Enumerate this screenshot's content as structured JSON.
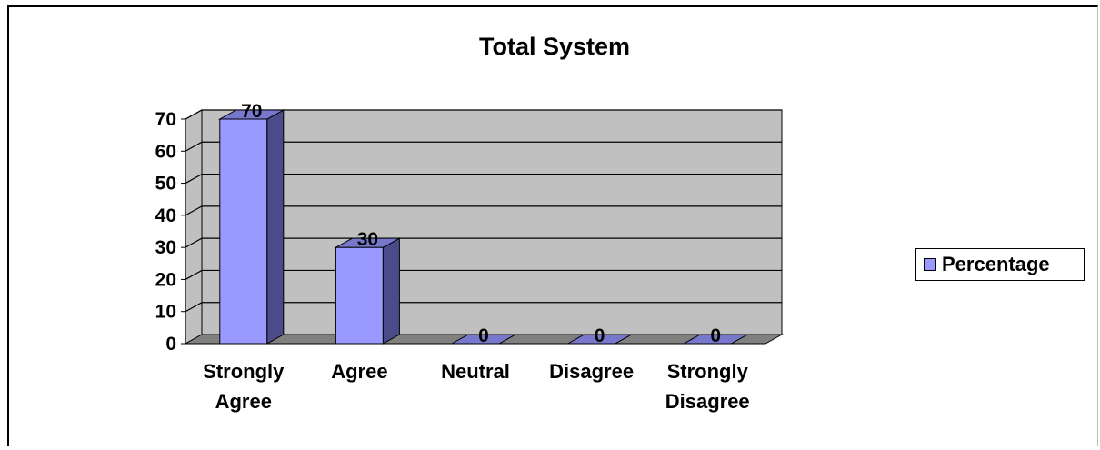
{
  "chart_data": {
    "type": "bar",
    "title": "Total System",
    "categories": [
      "Strongly Agree",
      "Agree",
      "Neutral",
      "Disagree",
      "Strongly Disagree"
    ],
    "category_lines": [
      [
        "Strongly",
        "Agree"
      ],
      [
        "Agree"
      ],
      [
        "Neutral"
      ],
      [
        "Disagree"
      ],
      [
        "Strongly",
        "Disagree"
      ]
    ],
    "series": [
      {
        "name": "Percentage",
        "values": [
          70,
          30,
          0,
          0,
          0
        ]
      }
    ],
    "ylim": [
      0,
      70
    ],
    "yticks": [
      "0",
      "10",
      "20",
      "30",
      "40",
      "50",
      "60",
      "70"
    ],
    "xlabel": "",
    "ylabel": "",
    "grid": true,
    "legend": "right",
    "data_labels": true,
    "style": "3d-column",
    "colors": {
      "bar_front": "#9999ff",
      "bar_side": "#4b4b8a",
      "bar_top": "#7777cc",
      "wall": "#c0c0c0",
      "floor": "#808080"
    }
  }
}
